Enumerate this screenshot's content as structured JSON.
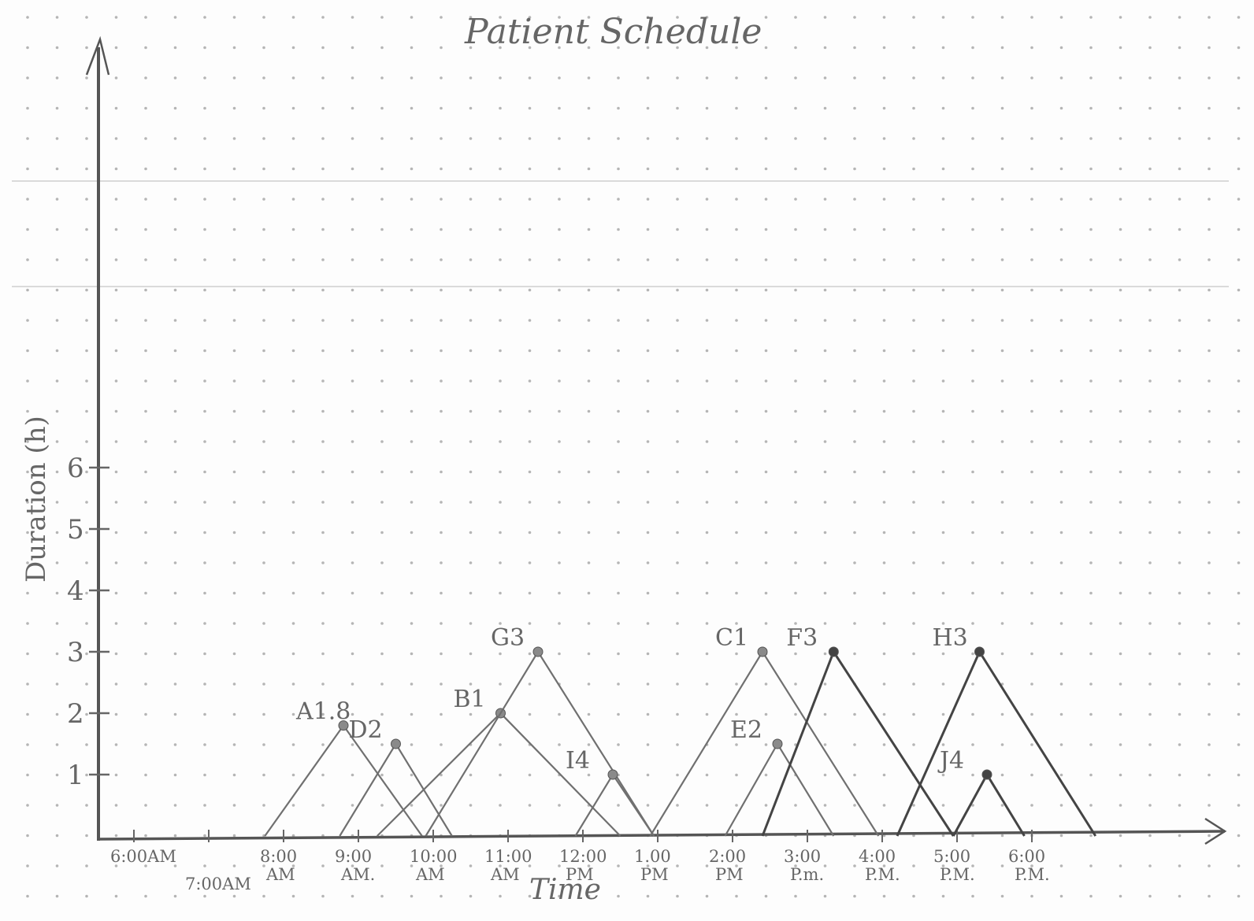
{
  "chart_data": {
    "type": "line",
    "title": "Patient Schedule",
    "xlabel": "Time",
    "ylabel": "Duration (h)",
    "x_tick_labels": [
      [
        "6:00AM",
        ""
      ],
      [
        "7:00AM",
        ""
      ],
      [
        "8:00",
        "AM"
      ],
      [
        "9:00",
        "AM."
      ],
      [
        "10:00",
        "AM"
      ],
      [
        "11:00",
        "AM"
      ],
      [
        "12:00",
        "PM"
      ],
      [
        "1.00",
        "PM"
      ],
      [
        "2:00",
        "PM"
      ],
      [
        "3:00",
        "P.m."
      ],
      [
        "4:00",
        "P.M."
      ],
      [
        "5:00",
        "P.M."
      ],
      [
        "6:00",
        "P.M."
      ]
    ],
    "y_ticks": [
      "1",
      "2",
      "3",
      "4",
      "5",
      "6"
    ],
    "x_range_hours": [
      6,
      19
    ],
    "y_range": [
      0,
      13
    ],
    "grid": "dot grid",
    "series": [
      {
        "name": "A",
        "label": "A1.8",
        "start": 7.75,
        "peak_time": 8.8,
        "duration": 1.8,
        "end": 9.85
      },
      {
        "name": "D",
        "label": "D2",
        "start": 8.75,
        "peak_time": 9.5,
        "duration": 1.5,
        "end": 10.25
      },
      {
        "name": "B",
        "label": "B1",
        "start": 9.25,
        "peak_time": 10.9,
        "duration": 2,
        "end": 12.5
      },
      {
        "name": "G",
        "label": "G3",
        "start": 9.9,
        "peak_time": 11.4,
        "duration": 3,
        "end": 12.95
      },
      {
        "name": "I",
        "label": "I4",
        "start": 11.9,
        "peak_time": 12.4,
        "duration": 1,
        "end": 12.95
      },
      {
        "name": "C",
        "label": "C1",
        "start": 12.9,
        "peak_time": 14.4,
        "duration": 3,
        "end": 15.95
      },
      {
        "name": "E",
        "label": "E2",
        "start": 13.9,
        "peak_time": 14.6,
        "duration": 1.5,
        "end": 15.35
      },
      {
        "name": "F",
        "label": "F3",
        "start": 14.4,
        "peak_time": 15.35,
        "duration": 3,
        "end": 16.95
      },
      {
        "name": "H",
        "label": "H3",
        "start": 16.2,
        "peak_time": 17.3,
        "duration": 3,
        "end": 18.85
      },
      {
        "name": "J",
        "label": "J4",
        "start": 16.95,
        "peak_time": 17.4,
        "duration": 1,
        "end": 17.9
      }
    ]
  },
  "colors": {
    "axis": "#666666",
    "line": "#707070",
    "dot": "#8a8a8a",
    "dark": "#444444"
  }
}
